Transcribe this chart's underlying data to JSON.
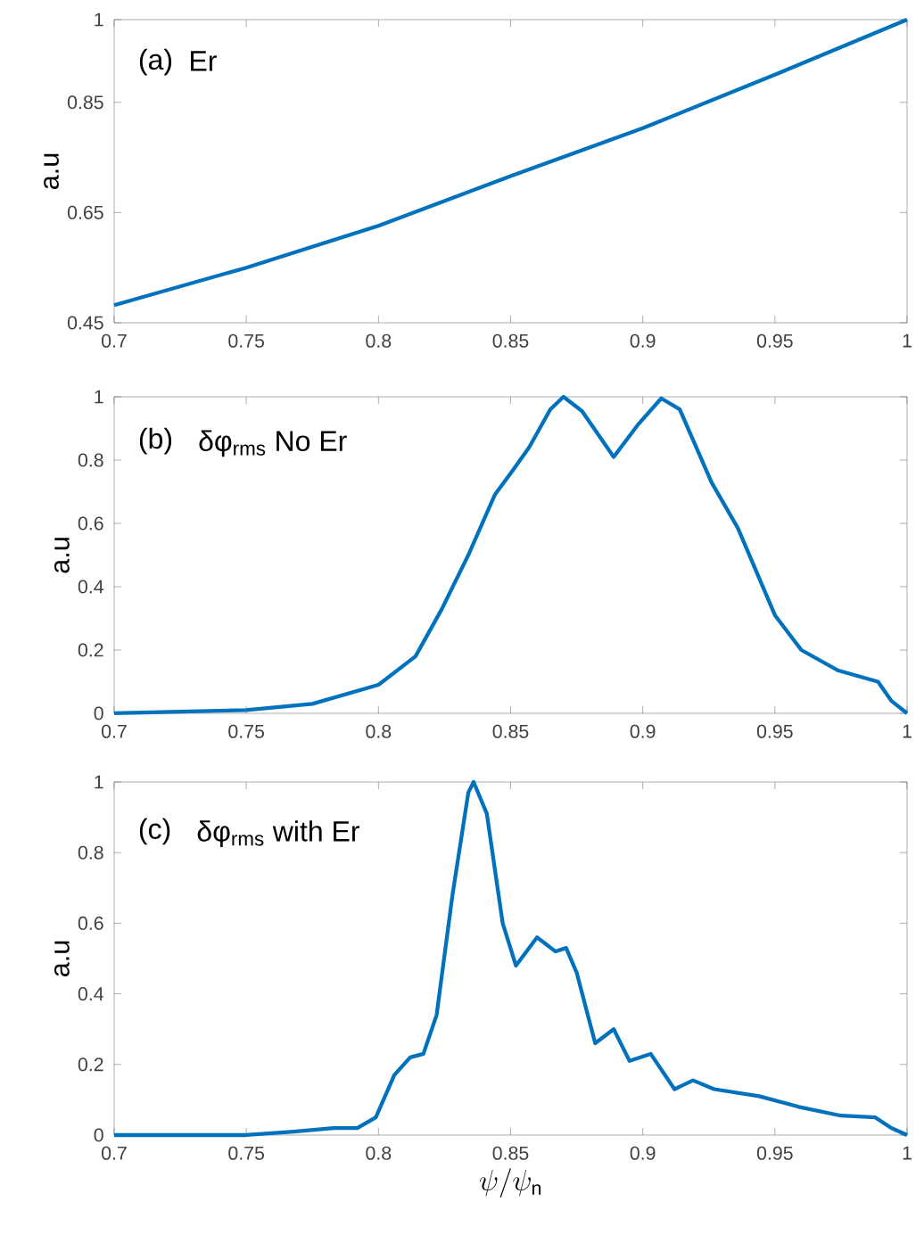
{
  "chart_data": [
    {
      "type": "line",
      "ylabel": "a.u",
      "annotations": [
        "(a)",
        "Er"
      ],
      "xlim": [
        0.7,
        1
      ],
      "ylim": [
        0.45,
        1
      ],
      "xticks": [
        0.7,
        0.75,
        0.8,
        0.85,
        0.9,
        0.95,
        1
      ],
      "yticks": [
        0.45,
        0.65,
        0.85,
        1
      ],
      "series": [
        {
          "color": "#0072bd",
          "x": [
            0.7,
            0.75,
            0.8,
            0.85,
            0.9,
            0.95,
            1
          ],
          "values": [
            0.482,
            0.55,
            0.626,
            0.716,
            0.803,
            0.9,
            1.0
          ]
        }
      ]
    },
    {
      "type": "line",
      "ylabel": "a.u",
      "annotations": [
        "(b)",
        "δφ$_{rms}$ No Er"
      ],
      "xlim": [
        0.7,
        1
      ],
      "ylim": [
        0,
        1
      ],
      "xticks": [
        0.7,
        0.75,
        0.8,
        0.85,
        0.9,
        0.95,
        1
      ],
      "yticks": [
        0,
        0.2,
        0.4,
        0.6,
        0.8,
        1
      ],
      "series": [
        {
          "color": "#0072bd",
          "x": [
            0.7,
            0.75,
            0.775,
            0.8,
            0.814,
            0.824,
            0.834,
            0.844,
            0.851,
            0.857,
            0.865,
            0.87,
            0.877,
            0.889,
            0.898,
            0.907,
            0.914,
            0.926,
            0.936,
            0.95,
            0.96,
            0.974,
            0.989,
            0.994,
            1.0
          ],
          "values": [
            0,
            0.01,
            0.03,
            0.09,
            0.18,
            0.33,
            0.5,
            0.69,
            0.77,
            0.84,
            0.96,
            1.0,
            0.955,
            0.81,
            0.91,
            0.995,
            0.96,
            0.73,
            0.585,
            0.31,
            0.2,
            0.135,
            0.1,
            0.04,
            0
          ]
        }
      ]
    },
    {
      "type": "line",
      "ylabel": "a.u",
      "xlabel": "\\psi/\\psi_{\\mathrm{n}}",
      "annotations": [
        "(c)",
        "δφ$_{rms}$ with Er"
      ],
      "xlim": [
        0.7,
        1
      ],
      "ylim": [
        0,
        1
      ],
      "xticks": [
        0.7,
        0.75,
        0.8,
        0.85,
        0.9,
        0.95,
        1
      ],
      "yticks": [
        0,
        0.2,
        0.4,
        0.6,
        0.8,
        1
      ],
      "series": [
        {
          "color": "#0072bd",
          "x": [
            0.7,
            0.75,
            0.768,
            0.783,
            0.792,
            0.799,
            0.806,
            0.812,
            0.817,
            0.822,
            0.828,
            0.834,
            0.836,
            0.841,
            0.847,
            0.852,
            0.86,
            0.867,
            0.871,
            0.875,
            0.882,
            0.889,
            0.895,
            0.903,
            0.912,
            0.919,
            0.927,
            0.944,
            0.959,
            0.975,
            0.988,
            0.994,
            1.0
          ],
          "values": [
            0,
            0,
            0.01,
            0.02,
            0.02,
            0.05,
            0.17,
            0.22,
            0.23,
            0.34,
            0.68,
            0.97,
            1.0,
            0.91,
            0.6,
            0.48,
            0.56,
            0.52,
            0.53,
            0.46,
            0.26,
            0.3,
            0.21,
            0.23,
            0.13,
            0.155,
            0.13,
            0.11,
            0.08,
            0.055,
            0.05,
            0.02,
            0
          ]
        }
      ]
    }
  ]
}
